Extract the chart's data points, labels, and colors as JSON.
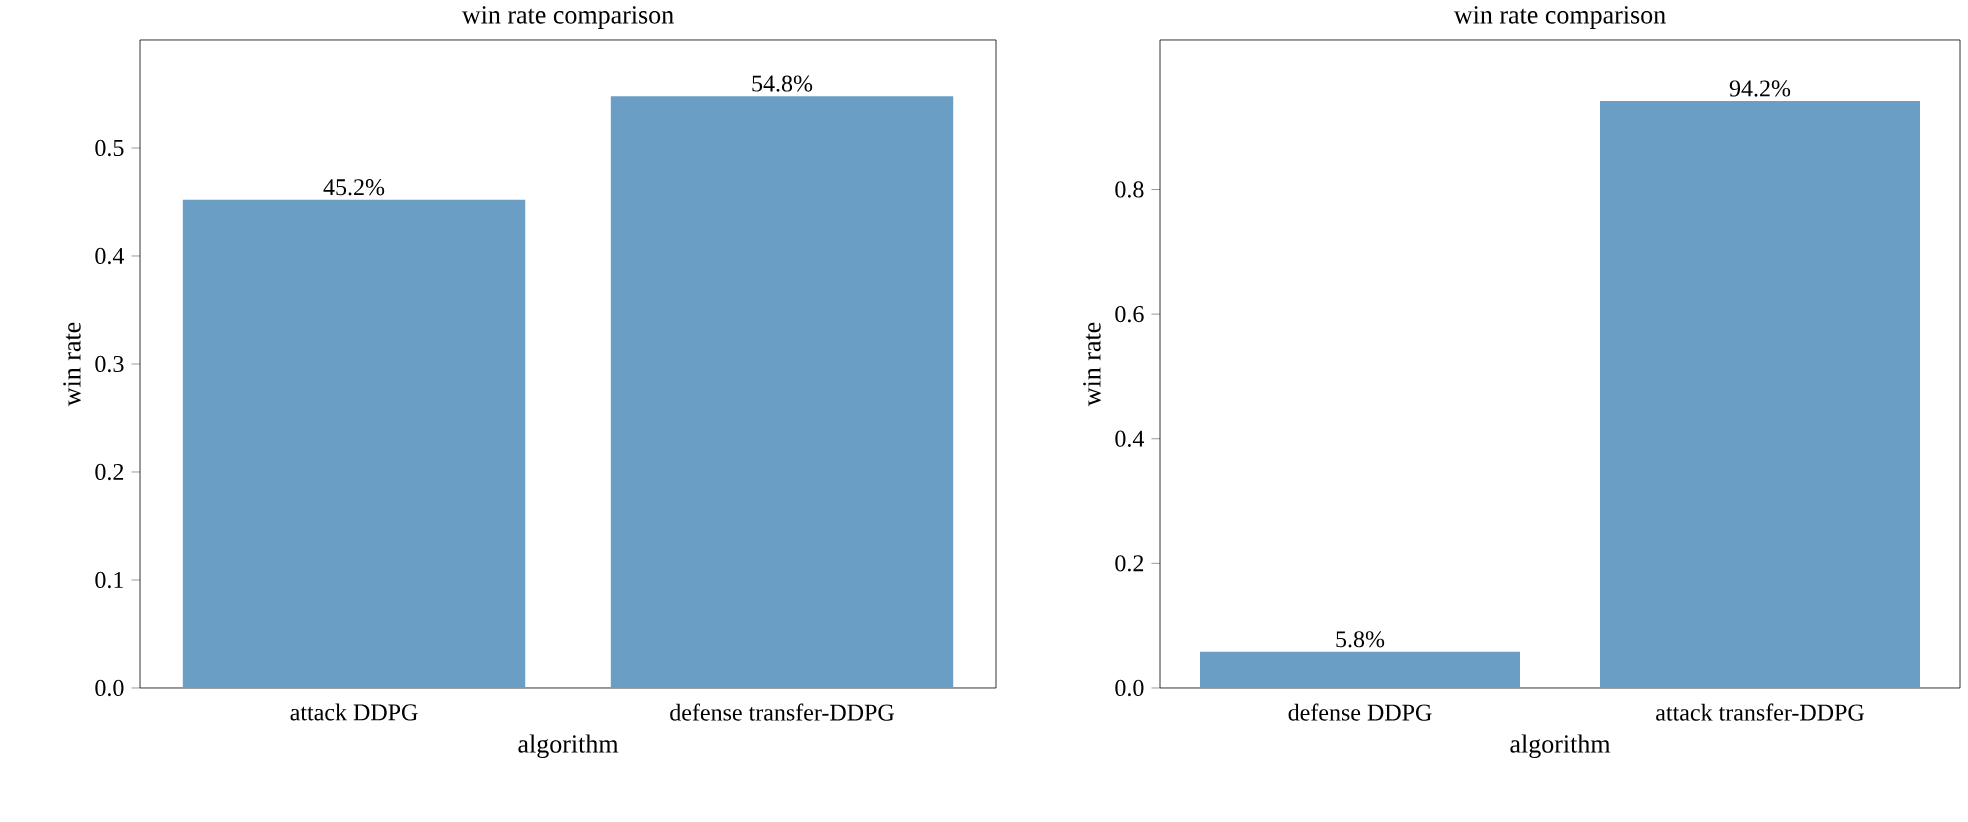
{
  "chart_data": [
    {
      "type": "bar",
      "title": "win rate comparison",
      "xlabel": "algorithm",
      "ylabel": "win rate",
      "categories": [
        "attack DDPG",
        "defense transfer-DDPG"
      ],
      "values": [
        0.452,
        0.548
      ],
      "value_labels": [
        "45.2%",
        "54.8%"
      ],
      "color": "#6a9ec5",
      "ylim": [
        0,
        0.6
      ],
      "yticks": [
        {
          "value": 0,
          "label": "0.0"
        },
        0.1,
        0.2,
        0.3,
        0.4,
        0.5
      ]
    },
    {
      "type": "bar",
      "title": "win rate comparison",
      "xlabel": "algorithm",
      "ylabel": "win rate",
      "categories": [
        "defense DDPG",
        "attack transfer-DDPG"
      ],
      "values": [
        0.058,
        0.942
      ],
      "value_labels": [
        "5.8%",
        "94.2%"
      ],
      "color": "#6a9ec5",
      "ylim": [
        0,
        1.04
      ],
      "yticks": [
        {
          "value": 0,
          "label": "0.0"
        },
        0.2,
        0.4,
        0.6,
        0.8
      ]
    }
  ]
}
